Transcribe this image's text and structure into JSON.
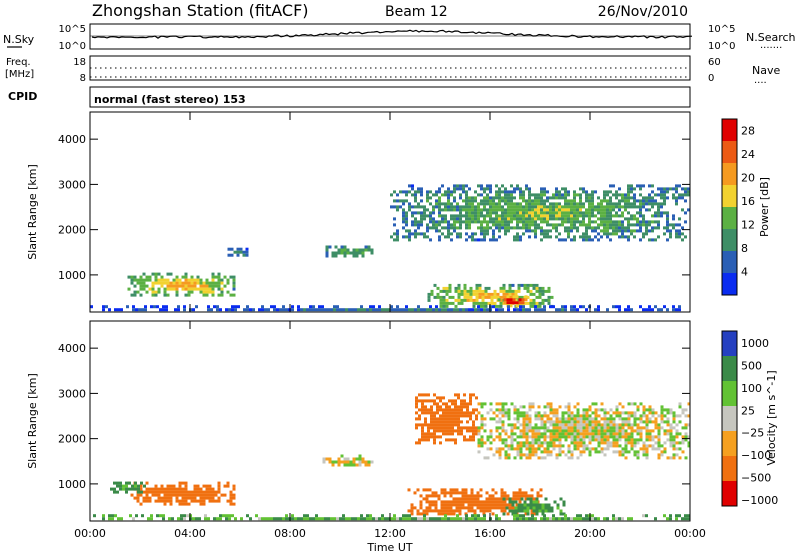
{
  "header": {
    "station_title": "Zhongshan Station (fitACF)",
    "beam": "Beam 12",
    "date": "26/Nov/2010"
  },
  "top_panels": {
    "nsky": {
      "label": "N.Sky",
      "ticks": [
        "10^5",
        "10^0"
      ]
    },
    "nsearch": {
      "label": "N.Search",
      "ticks": [
        "10^5",
        "10^0"
      ],
      "legend_marker": "......."
    },
    "freq": {
      "label_line1": "Freq.",
      "label_line2": "[MHz]",
      "ticks": [
        "18",
        "8"
      ]
    },
    "nave": {
      "label": "Nave",
      "ticks": [
        "60",
        "0"
      ],
      "legend_marker": "...."
    },
    "cpid": {
      "label": "CPID",
      "mode_text": "normal (fast stereo) 153"
    }
  },
  "colors": {
    "power_scale": [
      "#0a2cf0",
      "#2a5fb5",
      "#3e8e66",
      "#5bb043",
      "#f2d230",
      "#f59a20",
      "#ec5a14",
      "#e00000"
    ],
    "velocity_scale": [
      "#e00000",
      "#f07010",
      "#f5a020",
      "#c6c6bf",
      "#62c234",
      "#3a8a48",
      "#2540c0"
    ]
  },
  "chart_data": [
    {
      "type": "heatmap",
      "title": "",
      "xlabel": "Time UT",
      "ylabel": "Slant Range [km]",
      "xlim": [
        0,
        24
      ],
      "ylim": [
        180,
        4600
      ],
      "x_ticks": [
        "00:00",
        "04:00",
        "08:00",
        "12:00",
        "16:00",
        "20:00",
        "00:00"
      ],
      "y_ticks": [
        "1000",
        "2000",
        "3000",
        "4000"
      ],
      "colorbar": {
        "label": "Power [dB]",
        "ticks": [
          "4",
          "8",
          "12",
          "16",
          "20",
          "24",
          "28"
        ],
        "range": [
          0,
          30
        ]
      },
      "echo_regions": [
        {
          "t0": 1.5,
          "t1": 5.8,
          "r0": 550,
          "r1": 1050,
          "level": 18
        },
        {
          "t0": 5.5,
          "t1": 6.3,
          "r0": 1450,
          "r1": 1600,
          "level": 8
        },
        {
          "t0": 9.3,
          "t1": 11.3,
          "r0": 1400,
          "r1": 1650,
          "level": 12
        },
        {
          "t0": 12.0,
          "t1": 24.0,
          "r0": 1800,
          "r1": 3000,
          "level": 12
        },
        {
          "t0": 13.5,
          "t1": 18.5,
          "r0": 300,
          "r1": 800,
          "level": 18
        },
        {
          "t0": 16.3,
          "t1": 17.5,
          "r0": 350,
          "r1": 550,
          "level": 28
        },
        {
          "t0": 0.0,
          "t1": 24.0,
          "r0": 200,
          "r1": 330,
          "level": 6
        }
      ]
    },
    {
      "type": "heatmap",
      "title": "",
      "xlabel": "Time UT",
      "ylabel": "Slant Range [km]",
      "xlim": [
        0,
        24
      ],
      "ylim": [
        180,
        4600
      ],
      "x_ticks": [
        "00:00",
        "04:00",
        "08:00",
        "12:00",
        "16:00",
        "20:00",
        "00:00"
      ],
      "y_ticks": [
        "1000",
        "2000",
        "3000",
        "4000"
      ],
      "colorbar": {
        "label": "Velocity [m s^-1]",
        "ticks": [
          "1000",
          "500",
          "100",
          "25",
          "−25",
          "−100",
          "−500",
          "−1000"
        ],
        "range": [
          -1000,
          1000
        ]
      },
      "echo_regions": [
        {
          "t0": 1.5,
          "t1": 5.8,
          "r0": 550,
          "r1": 1050,
          "velocity": -300
        },
        {
          "t0": 0.8,
          "t1": 2.2,
          "r0": 850,
          "r1": 1050,
          "velocity": 150
        },
        {
          "t0": 9.3,
          "t1": 11.3,
          "r0": 1400,
          "r1": 1650,
          "velocity": 0
        },
        {
          "t0": 13.0,
          "t1": 15.5,
          "r0": 1900,
          "r1": 3000,
          "velocity": -300
        },
        {
          "t0": 15.5,
          "t1": 24.0,
          "r0": 1600,
          "r1": 2800,
          "velocity": 0
        },
        {
          "t0": 12.7,
          "t1": 18.0,
          "r0": 350,
          "r1": 900,
          "velocity": -300
        },
        {
          "t0": 16.5,
          "t1": 19.0,
          "r0": 350,
          "r1": 700,
          "velocity": 150
        },
        {
          "t0": 0.0,
          "t1": 24.0,
          "r0": 200,
          "r1": 330,
          "velocity": 100
        }
      ]
    }
  ]
}
